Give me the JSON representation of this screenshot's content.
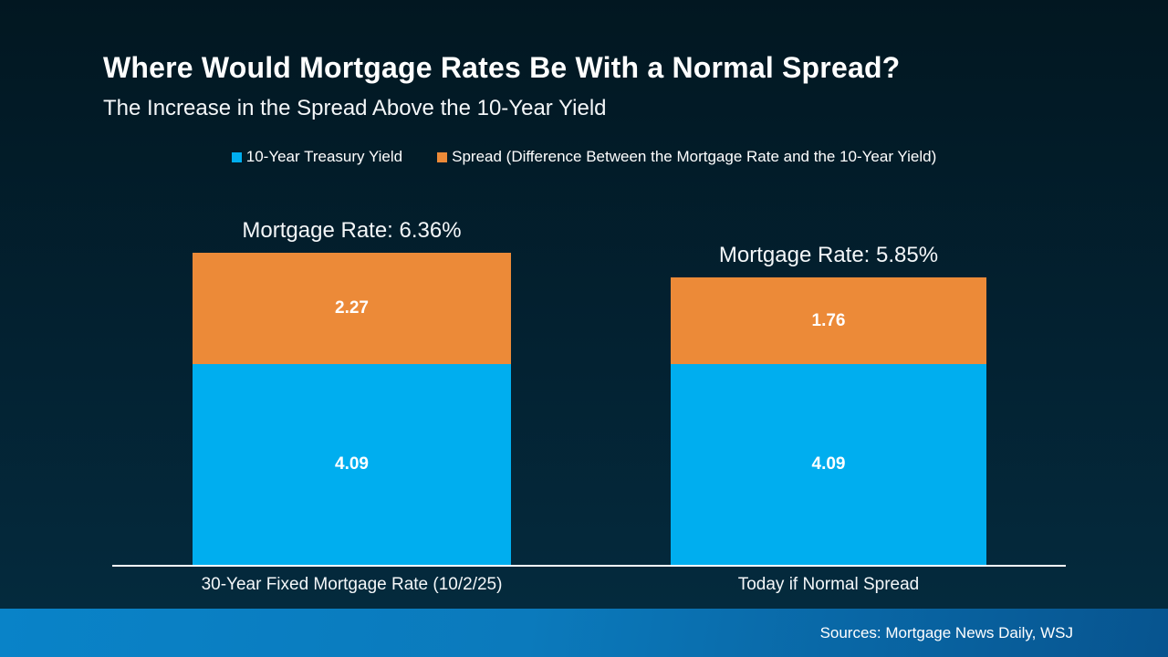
{
  "slide": {
    "title": "Where Would Mortgage Rates Be With a Normal Spread?",
    "subtitle": "The Increase in the Spread Above the 10-Year Yield"
  },
  "legend": {
    "position": "top-center",
    "items": [
      {
        "label": "10-Year Treasury Yield",
        "color": "#00AEEF"
      },
      {
        "label": "Spread (Difference Between the Mortgage Rate and the 10-Year Yield)",
        "color": "#EC8A38"
      }
    ]
  },
  "chart_data": {
    "type": "bar",
    "stacked": true,
    "categories": [
      "30-Year Fixed Mortgage Rate (10/2/25)",
      "Today if Normal Spread"
    ],
    "series": [
      {
        "name": "10-Year Treasury Yield",
        "color": "#00AEEF",
        "values": [
          4.09,
          4.09
        ]
      },
      {
        "name": "Spread (Difference Between the Mortgage Rate and the 10-Year Yield)",
        "color": "#EC8A38",
        "values": [
          2.27,
          1.76
        ]
      }
    ],
    "totals": [
      6.36,
      5.85
    ],
    "bar_total_labels": [
      "Mortgage Rate: 6.36%",
      "Mortgage Rate: 5.85%"
    ],
    "value_label_style": "inside-center",
    "ylim": [
      0,
      6.36
    ],
    "grid": false,
    "unit": "percentage points"
  },
  "footer": {
    "sources": "Sources: Mortgage News Daily, WSJ"
  },
  "colors": {
    "background_top": "#021721",
    "background_bottom": "#042A3D",
    "treasury_blue": "#00AEEF",
    "spread_orange": "#EC8A38",
    "axis_line": "#FCFDFE",
    "text": "#FFFFFF",
    "footer_band_left": "#0983C8",
    "footer_band_right": "#07548F"
  }
}
